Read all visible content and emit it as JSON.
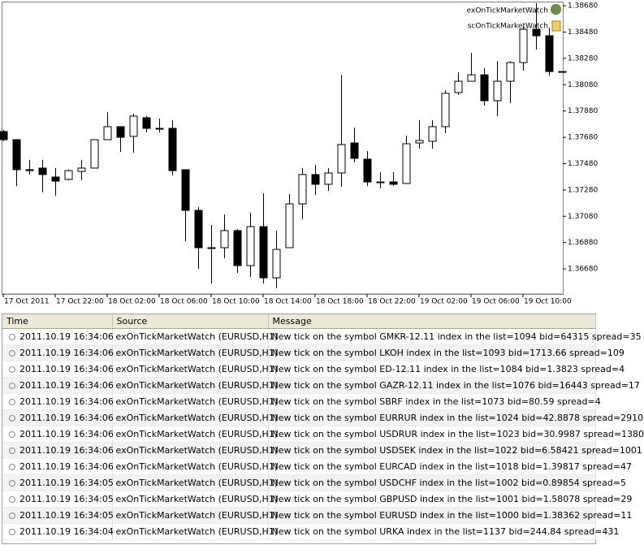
{
  "chart_data": {
    "type": "candlestick",
    "indicators": [
      "exOnTickMarketWatch",
      "scOnTickMarketWatch"
    ],
    "categories": [
      "17 Oct 2011",
      null,
      null,
      null,
      "17 Oct 22:00",
      null,
      null,
      null,
      "18 Oct 02:00",
      null,
      null,
      null,
      "18 Oct 06:00",
      null,
      null,
      null,
      "18 Oct 10:00",
      null,
      null,
      null,
      "18 Oct 14:00",
      null,
      null,
      null,
      "18 Oct 18:00",
      null,
      null,
      null,
      "18 Oct 22:00",
      null,
      null,
      null,
      "19 Oct 02:00",
      null,
      null,
      null,
      "19 Oct 06:00",
      null,
      null,
      null,
      "19 Oct 10:00",
      null,
      null,
      null
    ],
    "open": [
      1.37724,
      1.37662,
      1.37434,
      1.37446,
      1.37378,
      1.3736,
      1.37421,
      1.37446,
      1.37662,
      1.37761,
      1.37687,
      1.37829,
      1.37748,
      1.37748,
      1.37434,
      1.37125,
      1.36841,
      1.36841,
      1.36971,
      1.36705,
      1.37001,
      1.36612,
      1.36841,
      1.37174,
      1.37397,
      1.37323,
      1.37409,
      1.37637,
      1.37514,
      1.37341,
      1.37341,
      1.37329,
      1.37637,
      1.3765,
      1.37761,
      1.3802,
      1.38106,
      1.38155,
      1.37958,
      1.38106,
      1.38248,
      1.38501,
      1.38452,
      1.3818
    ],
    "high": [
      1.37736,
      1.37662,
      1.37508,
      1.37508,
      1.37446,
      1.37434,
      1.37508,
      1.37662,
      1.37872,
      1.37761,
      1.37859,
      1.37841,
      1.37822,
      1.3781,
      1.37434,
      1.3715,
      1.37014,
      1.37094,
      1.36983,
      1.37106,
      1.37255,
      1.36971,
      1.37248,
      1.37446,
      1.37471,
      1.37446,
      1.38155,
      1.37754,
      1.37576,
      1.37415,
      1.37415,
      1.37693,
      1.3781,
      1.3781,
      1.38038,
      1.38174,
      1.38322,
      1.38205,
      1.3826,
      1.3826,
      1.38526,
      1.387,
      1.38513,
      1.3818
    ],
    "low": [
      1.3765,
      1.3731,
      1.37397,
      1.37261,
      1.37236,
      1.37353,
      1.37353,
      1.37446,
      1.37662,
      1.37569,
      1.37563,
      1.37717,
      1.37717,
      1.3739,
      1.3689,
      1.3668,
      1.36569,
      1.3676,
      1.36649,
      1.36618,
      1.36569,
      1.36532,
      1.36841,
      1.37057,
      1.37242,
      1.37273,
      1.37304,
      1.37489,
      1.3731,
      1.37292,
      1.3731,
      1.37329,
      1.37594,
      1.37594,
      1.37711,
      1.38001,
      1.38106,
      1.37921,
      1.37841,
      1.3794,
      1.38186,
      1.38347,
      1.38149,
      1.3818
    ],
    "close": [
      1.37662,
      1.37434,
      1.37427,
      1.37397,
      1.37347,
      1.37427,
      1.37446,
      1.37662,
      1.37761,
      1.3768,
      1.37841,
      1.37748,
      1.37748,
      1.37427,
      1.37125,
      1.36841,
      1.36841,
      1.36971,
      1.36705,
      1.37001,
      1.36612,
      1.36828,
      1.37174,
      1.37397,
      1.37323,
      1.37409,
      1.37625,
      1.3752,
      1.37341,
      1.37341,
      1.37323,
      1.37631,
      1.37656,
      1.37761,
      1.38014,
      1.38106,
      1.38155,
      1.37958,
      1.38106,
      1.38248,
      1.38501,
      1.38452,
      1.3818,
      1.3818
    ],
    "up_color": "#ffffff",
    "down_color": "#000000",
    "ylim": [
      1.36489,
      1.38705
    ],
    "yticks": [
      {
        "value": 1.3868,
        "label": "1.38680"
      },
      {
        "value": 1.3848,
        "label": "1.38480"
      },
      {
        "value": 1.3828,
        "label": "1.38280"
      },
      {
        "value": 1.3808,
        "label": "1.38080"
      },
      {
        "value": 1.3788,
        "label": "1.37880"
      },
      {
        "value": 1.3768,
        "label": "1.37680"
      },
      {
        "value": 1.3748,
        "label": "1.37480"
      },
      {
        "value": 1.3728,
        "label": "1.37280"
      },
      {
        "value": 1.3708,
        "label": "1.37080"
      },
      {
        "value": 1.3688,
        "label": "1.36880"
      },
      {
        "value": 1.3668,
        "label": "1.36680"
      }
    ]
  },
  "table": {
    "columns": [
      "Time",
      "Source",
      "Message"
    ],
    "rows": [
      [
        "2011.10.19 16:34:06",
        "exOnTickMarketWatch (EURUSD,H1)",
        "New tick on the symbol GMKR-12.11 index in the list=1094 bid=64315 spread=35"
      ],
      [
        "2011.10.19 16:34:06",
        "exOnTickMarketWatch (EURUSD,H1)",
        "New tick on the symbol LKOH index in the list=1093 bid=1713.66 spread=109"
      ],
      [
        "2011.10.19 16:34:06",
        "exOnTickMarketWatch (EURUSD,H1)",
        "New tick on the symbol ED-12.11 index in the list=1084 bid=1.3823 spread=4"
      ],
      [
        "2011.10.19 16:34:06",
        "exOnTickMarketWatch (EURUSD,H1)",
        "New tick on the symbol GAZR-12.11 index in the list=1076 bid=16443 spread=17"
      ],
      [
        "2011.10.19 16:34:06",
        "exOnTickMarketWatch (EURUSD,H1)",
        "New tick on the symbol SBRF index in the list=1073 bid=80.59 spread=4"
      ],
      [
        "2011.10.19 16:34:06",
        "exOnTickMarketWatch (EURUSD,H1)",
        "New tick on the symbol EURRUR index in the list=1024 bid=42.8878 spread=2910"
      ],
      [
        "2011.10.19 16:34:06",
        "exOnTickMarketWatch (EURUSD,H1)",
        "New tick on the symbol USDRUR index in the list=1023 bid=30.9987 spread=1380"
      ],
      [
        "2011.10.19 16:34:06",
        "exOnTickMarketWatch (EURUSD,H1)",
        "New tick on the symbol USDSEK index in the list=1022 bid=6.58421 spread=1001"
      ],
      [
        "2011.10.19 16:34:06",
        "exOnTickMarketWatch (EURUSD,H1)",
        "New tick on the symbol EURCAD index in the list=1018 bid=1.39817 spread=47"
      ],
      [
        "2011.10.19 16:34:05",
        "exOnTickMarketWatch (EURUSD,H1)",
        "New tick on the symbol USDCHF index in the list=1002 bid=0.89854 spread=5"
      ],
      [
        "2011.10.19 16:34:05",
        "exOnTickMarketWatch (EURUSD,H1)",
        "New tick on the symbol GBPUSD index in the list=1001 bid=1.58078 spread=29"
      ],
      [
        "2011.10.19 16:34:05",
        "exOnTickMarketWatch (EURUSD,H1)",
        "New tick on the symbol EURUSD index in the list=1000 bid=1.38362 spread=11"
      ],
      [
        "2011.10.19 16:34:04",
        "exOnTickMarketWatch (EURUSD,H1)",
        "New tick on the symbol URKA index in the list=1137 bid=244.84 spread=431"
      ]
    ]
  }
}
